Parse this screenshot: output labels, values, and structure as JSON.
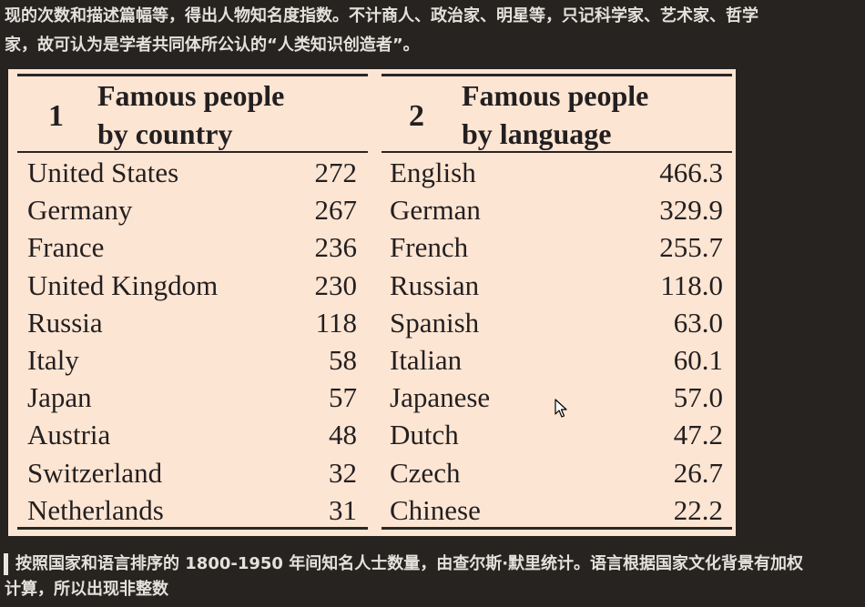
{
  "intro_lines": [
    "现的次数和描述篇幅等，得出人物知名度指数。不计商人、政治家、明星等，只记科学家、艺术家、哲学",
    "家，故可认为是学者共同体所公认的“人类知识创造者”。"
  ],
  "figure": {
    "panels": [
      {
        "number": "1",
        "title_lines": [
          "Famous people",
          "by country"
        ],
        "rows": [
          {
            "label": "United States",
            "value": "272"
          },
          {
            "label": "Germany",
            "value": "267"
          },
          {
            "label": "France",
            "value": "236"
          },
          {
            "label": "United Kingdom",
            "value": "230"
          },
          {
            "label": "Russia",
            "value": "118"
          },
          {
            "label": "Italy",
            "value": "58"
          },
          {
            "label": "Japan",
            "value": "57"
          },
          {
            "label": "Austria",
            "value": "48"
          },
          {
            "label": "Switzerland",
            "value": "32"
          },
          {
            "label": "Netherlands",
            "value": "31"
          }
        ]
      },
      {
        "number": "2",
        "title_lines": [
          "Famous people",
          "by language"
        ],
        "rows": [
          {
            "label": "English",
            "value": "466.3"
          },
          {
            "label": "German",
            "value": "329.9"
          },
          {
            "label": "French",
            "value": "255.7"
          },
          {
            "label": "Russian",
            "value": "118.0"
          },
          {
            "label": "Spanish",
            "value": "63.0"
          },
          {
            "label": "Italian",
            "value": "60.1"
          },
          {
            "label": "Japanese",
            "value": "57.0"
          },
          {
            "label": "Dutch",
            "value": "47.2"
          },
          {
            "label": "Czech",
            "value": "26.7"
          },
          {
            "label": "Chinese",
            "value": "22.2"
          }
        ]
      }
    ]
  },
  "caption_lines": [
    "按照国家和语言排序的 1800-1950 年间知名人士数量，由查尔斯·默里统计。语言根据国家文化背景有加权",
    "计算，所以出现非整数"
  ],
  "colors": {
    "page_background": "#262320",
    "figure_background": "#fde5d3",
    "text_light": "#e4e1dc",
    "text_dark": "#231f20"
  },
  "icons": {
    "cursor": "mouse-pointer-icon"
  }
}
